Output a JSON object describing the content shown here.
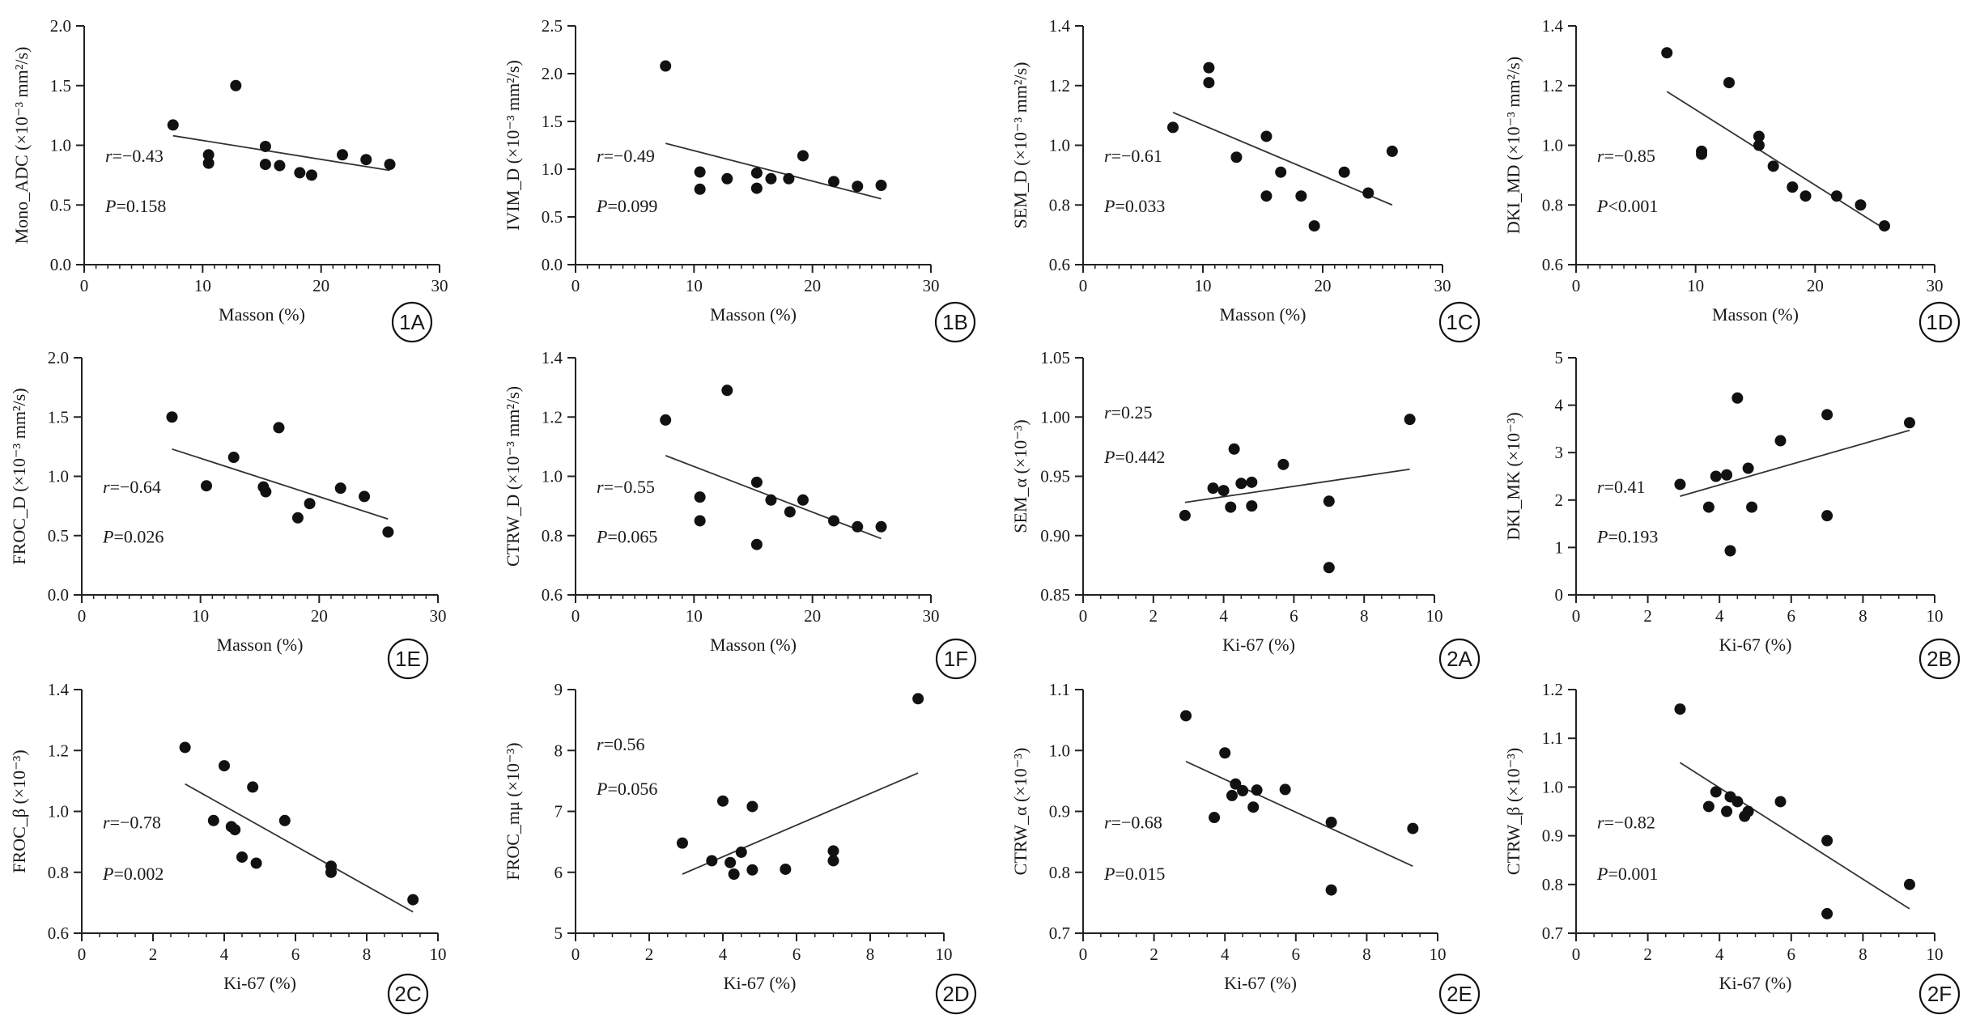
{
  "chart_data": [
    {
      "id": "1A",
      "panel_label": "1A",
      "type": "scatter",
      "xlabel": "Masson (%)",
      "ylabel": "Mono_ADC (×10⁻³ mm²/s)",
      "xlim": [
        0,
        30
      ],
      "ylim": [
        0,
        2.0
      ],
      "xticks": [
        0,
        10,
        20,
        30
      ],
      "yticks": [
        "0.0",
        "0.5",
        "1.0",
        "1.5",
        "2.0"
      ],
      "x": [
        7.5,
        10.5,
        10.5,
        12.8,
        15.3,
        15.3,
        16.5,
        18.2,
        19.2,
        21.8,
        23.8,
        25.8
      ],
      "y": [
        1.17,
        0.92,
        0.85,
        1.5,
        0.99,
        0.84,
        0.83,
        0.77,
        0.75,
        0.92,
        0.88,
        0.84
      ],
      "fit": {
        "x": [
          7.5,
          25.8
        ],
        "y": [
          1.08,
          0.79
        ]
      },
      "annotation": {
        "r": "r=−0.43",
        "p": "P=0.158"
      }
    },
    {
      "id": "1B",
      "panel_label": "1B",
      "type": "scatter",
      "xlabel": "Masson (%)",
      "ylabel": "IVIM_D (×10⁻³ mm²/s)",
      "xlim": [
        0,
        30
      ],
      "ylim": [
        0,
        2.5
      ],
      "xticks": [
        0,
        10,
        20,
        30
      ],
      "yticks": [
        "0.0",
        "0.5",
        "1.0",
        "1.5",
        "2.0",
        "2.5"
      ],
      "x": [
        7.6,
        10.5,
        10.5,
        12.8,
        15.3,
        15.3,
        16.5,
        18.0,
        19.2,
        21.8,
        23.8,
        25.8
      ],
      "y": [
        2.08,
        0.97,
        0.79,
        0.9,
        0.96,
        0.8,
        0.9,
        0.9,
        1.14,
        0.87,
        0.82,
        0.83
      ],
      "fit": {
        "x": [
          7.6,
          25.8
        ],
        "y": [
          1.27,
          0.69
        ]
      },
      "annotation": {
        "r": "r=−0.49",
        "p": "P=0.099"
      }
    },
    {
      "id": "1C",
      "panel_label": "1C",
      "type": "scatter",
      "xlabel": "Masson (%)",
      "ylabel": "SEM_D (×10⁻³ mm²/s)",
      "xlim": [
        0,
        30
      ],
      "ylim": [
        0.6,
        1.4
      ],
      "xticks": [
        0,
        10,
        20,
        30
      ],
      "yticks": [
        "0.6",
        "0.8",
        "1.0",
        "1.2",
        "1.4"
      ],
      "x": [
        7.5,
        10.5,
        10.5,
        12.8,
        15.3,
        15.3,
        16.5,
        18.2,
        19.3,
        21.8,
        23.8,
        25.8
      ],
      "y": [
        1.06,
        1.26,
        1.21,
        0.96,
        1.03,
        0.83,
        0.91,
        0.83,
        0.73,
        0.91,
        0.84,
        0.98
      ],
      "fit": {
        "x": [
          7.5,
          25.8
        ],
        "y": [
          1.11,
          0.8
        ]
      },
      "annotation": {
        "r": "r=−0.61",
        "p": "P=0.033"
      }
    },
    {
      "id": "1D",
      "panel_label": "1D",
      "type": "scatter",
      "xlabel": "Masson (%)",
      "ylabel": "DKI_MD (×10⁻³ mm²/s)",
      "xlim": [
        0,
        30
      ],
      "ylim": [
        0.6,
        1.4
      ],
      "xticks": [
        0,
        10,
        20,
        30
      ],
      "yticks": [
        "0.6",
        "0.8",
        "1.0",
        "1.2",
        "1.4"
      ],
      "x": [
        7.6,
        10.5,
        10.5,
        12.8,
        15.3,
        15.3,
        16.5,
        18.1,
        19.2,
        21.8,
        23.8,
        25.8
      ],
      "y": [
        1.31,
        0.98,
        0.97,
        1.21,
        1.03,
        1.0,
        0.93,
        0.86,
        0.83,
        0.83,
        0.8,
        0.73
      ],
      "fit": {
        "x": [
          7.6,
          25.8
        ],
        "y": [
          1.18,
          0.72
        ]
      },
      "annotation": {
        "r": "r=−0.85",
        "p": "P<0.001"
      }
    },
    {
      "id": "1E",
      "panel_label": "1E",
      "type": "scatter",
      "xlabel": "Masson (%)",
      "ylabel": "FROC_D (×10⁻³ mm²/s)",
      "xlim": [
        0,
        30
      ],
      "ylim": [
        0,
        2.0
      ],
      "xticks": [
        0,
        10,
        20,
        30
      ],
      "yticks": [
        "0.0",
        "0.5",
        "1.0",
        "1.5",
        "2.0"
      ],
      "x": [
        7.6,
        10.5,
        12.8,
        15.3,
        15.5,
        16.6,
        18.2,
        19.2,
        21.8,
        23.8,
        25.8
      ],
      "y": [
        1.5,
        0.92,
        1.16,
        0.91,
        0.87,
        1.41,
        0.65,
        0.77,
        0.9,
        0.83,
        0.53
      ],
      "fit": {
        "x": [
          7.6,
          25.8
        ],
        "y": [
          1.23,
          0.64
        ]
      },
      "annotation": {
        "r": "r=−0.64",
        "p": "P=0.026"
      }
    },
    {
      "id": "1F",
      "panel_label": "1F",
      "type": "scatter",
      "xlabel": "Masson (%)",
      "ylabel": "CTRW_D (×10⁻³ mm²/s)",
      "xlim": [
        0,
        30
      ],
      "ylim": [
        0.6,
        1.4
      ],
      "xticks": [
        0,
        10,
        20,
        30
      ],
      "yticks": [
        "0.6",
        "0.8",
        "1.0",
        "1.2",
        "1.4"
      ],
      "x": [
        7.6,
        10.5,
        10.5,
        12.8,
        15.3,
        15.3,
        16.5,
        18.1,
        19.2,
        21.8,
        23.8,
        25.8
      ],
      "y": [
        1.19,
        0.93,
        0.85,
        1.29,
        0.98,
        0.77,
        0.92,
        0.88,
        0.92,
        0.85,
        0.83,
        0.83
      ],
      "fit": {
        "x": [
          7.6,
          25.8
        ],
        "y": [
          1.07,
          0.79
        ]
      },
      "annotation": {
        "r": "r=−0.55",
        "p": "P=0.065"
      }
    },
    {
      "id": "2A",
      "panel_label": "2A",
      "type": "scatter",
      "xlabel": "Ki-67 (%)",
      "ylabel": "SEM_α (×10⁻³)",
      "xlim": [
        0,
        10
      ],
      "ylim": [
        0.85,
        1.05
      ],
      "xticks": [
        0,
        2,
        4,
        6,
        8,
        10
      ],
      "yticks": [
        "0.85",
        "0.90",
        "0.95",
        "1.00",
        "1.05"
      ],
      "x": [
        2.9,
        3.7,
        4.0,
        4.2,
        4.3,
        4.5,
        4.8,
        4.8,
        5.7,
        7.0,
        7.0,
        9.3
      ],
      "y": [
        0.917,
        0.94,
        0.938,
        0.924,
        0.973,
        0.944,
        0.945,
        0.925,
        0.96,
        0.929,
        0.873,
        0.998
      ],
      "fit": {
        "x": [
          2.9,
          9.3
        ],
        "y": [
          0.928,
          0.956
        ]
      },
      "annotation": {
        "r": "r=0.25",
        "p": "P=0.442"
      }
    },
    {
      "id": "2B",
      "panel_label": "2B",
      "type": "scatter",
      "xlabel": "Ki-67 (%)",
      "ylabel": "DKI_MK (×10⁻³)",
      "xlim": [
        0,
        10
      ],
      "ylim": [
        0,
        5
      ],
      "xticks": [
        0,
        2,
        4,
        6,
        8,
        10
      ],
      "yticks": [
        "0",
        "1",
        "2",
        "3",
        "4",
        "5"
      ],
      "x": [
        2.9,
        3.7,
        3.9,
        4.2,
        4.3,
        4.5,
        4.8,
        4.9,
        5.7,
        7.0,
        7.0,
        9.3
      ],
      "y": [
        2.33,
        1.85,
        2.5,
        2.53,
        0.93,
        4.15,
        2.67,
        1.85,
        3.25,
        3.8,
        1.67,
        3.63
      ],
      "fit": {
        "x": [
          2.9,
          9.3
        ],
        "y": [
          2.08,
          3.47
        ]
      },
      "annotation": {
        "r": "r=0.41",
        "p": "P=0.193"
      }
    },
    {
      "id": "2C",
      "panel_label": "2C",
      "type": "scatter",
      "xlabel": "Ki-67 (%)",
      "ylabel": "FROC_β (×10⁻³)",
      "xlim": [
        0,
        10
      ],
      "ylim": [
        0.6,
        1.4
      ],
      "xticks": [
        0,
        2,
        4,
        6,
        8,
        10
      ],
      "yticks": [
        "0.6",
        "0.8",
        "1.0",
        "1.2",
        "1.4"
      ],
      "x": [
        2.9,
        3.7,
        4.0,
        4.2,
        4.3,
        4.5,
        4.8,
        4.9,
        5.7,
        7.0,
        7.0,
        9.3
      ],
      "y": [
        1.21,
        0.97,
        1.15,
        0.95,
        0.94,
        0.85,
        1.08,
        0.83,
        0.97,
        0.82,
        0.8,
        0.71
      ],
      "fit": {
        "x": [
          2.9,
          9.3
        ],
        "y": [
          1.09,
          0.67
        ]
      },
      "annotation": {
        "r": "r=−0.78",
        "p": "P=0.002"
      }
    },
    {
      "id": "2D",
      "panel_label": "2D",
      "type": "scatter",
      "xlabel": "Ki-67 (%)",
      "ylabel": "FROC_mμ (×10⁻³)",
      "xlim": [
        0,
        10
      ],
      "ylim": [
        5,
        9
      ],
      "xticks": [
        0,
        2,
        4,
        6,
        8,
        10
      ],
      "yticks": [
        "5",
        "6",
        "7",
        "8",
        "9"
      ],
      "x": [
        2.9,
        3.7,
        4.0,
        4.2,
        4.3,
        4.5,
        4.8,
        4.8,
        5.7,
        7.0,
        7.0,
        9.3
      ],
      "y": [
        6.48,
        6.19,
        7.17,
        6.16,
        5.97,
        6.33,
        7.08,
        6.04,
        6.05,
        6.35,
        6.19,
        8.85
      ],
      "fit": {
        "x": [
          2.9,
          9.3
        ],
        "y": [
          5.97,
          7.63
        ]
      },
      "annotation": {
        "r": "r=0.56",
        "p": "P=0.056"
      }
    },
    {
      "id": "2E",
      "panel_label": "2E",
      "type": "scatter",
      "xlabel": "Ki-67 (%)",
      "ylabel": "CTRW_α (×10⁻³)",
      "xlim": [
        0,
        10
      ],
      "ylim": [
        0.7,
        1.1
      ],
      "xticks": [
        0,
        2,
        4,
        6,
        8,
        10
      ],
      "yticks": [
        "0.7",
        "0.8",
        "0.9",
        "1.0",
        "1.1"
      ],
      "x": [
        2.9,
        3.7,
        4.0,
        4.2,
        4.3,
        4.5,
        4.8,
        4.9,
        5.7,
        7.0,
        7.0,
        9.3
      ],
      "y": [
        1.057,
        0.89,
        0.996,
        0.926,
        0.945,
        0.934,
        0.907,
        0.935,
        0.936,
        0.882,
        0.771,
        0.872
      ],
      "fit": {
        "x": [
          2.9,
          9.3
        ],
        "y": [
          0.982,
          0.81
        ]
      },
      "annotation": {
        "r": "r=−0.68",
        "p": "P=0.015"
      }
    },
    {
      "id": "2F",
      "panel_label": "2F",
      "type": "scatter",
      "xlabel": "Ki-67 (%)",
      "ylabel": "CTRW_β (×10⁻³)",
      "xlim": [
        0,
        10
      ],
      "ylim": [
        0.7,
        1.2
      ],
      "xticks": [
        0,
        2,
        4,
        6,
        8,
        10
      ],
      "yticks": [
        "0.7",
        "0.8",
        "0.9",
        "1.0",
        "1.1",
        "1.2"
      ],
      "x": [
        2.9,
        3.7,
        3.9,
        4.2,
        4.3,
        4.5,
        4.7,
        4.8,
        5.7,
        7.0,
        7.0,
        9.3
      ],
      "y": [
        1.16,
        0.96,
        0.99,
        0.95,
        0.98,
        0.97,
        0.94,
        0.95,
        0.97,
        0.89,
        0.74,
        0.8
      ],
      "fit": {
        "x": [
          2.9,
          9.3
        ],
        "y": [
          1.05,
          0.75
        ]
      },
      "annotation": {
        "r": "r=−0.82",
        "p": "P=0.001"
      }
    }
  ]
}
